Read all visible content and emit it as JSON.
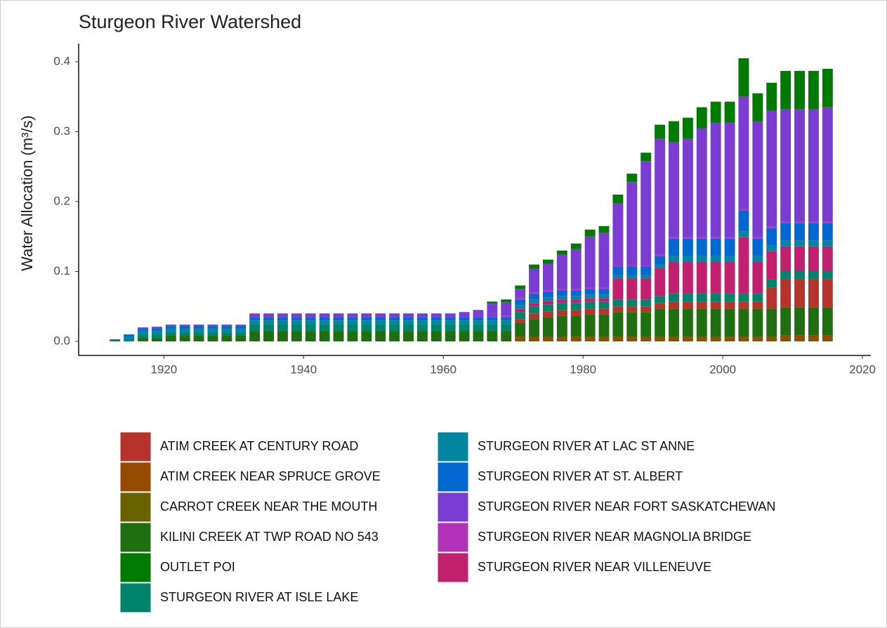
{
  "chart_data": {
    "type": "bar",
    "title": "Sturgeon River Watershed",
    "y_label": "Water Allocation (m³/s)",
    "x": [
      1913,
      1915,
      1917,
      1919,
      1921,
      1923,
      1925,
      1927,
      1929,
      1931,
      1933,
      1935,
      1937,
      1939,
      1941,
      1943,
      1945,
      1947,
      1949,
      1951,
      1953,
      1955,
      1957,
      1959,
      1961,
      1963,
      1965,
      1967,
      1969,
      1971,
      1973,
      1975,
      1977,
      1979,
      1981,
      1983,
      1985,
      1987,
      1989,
      1991,
      1993,
      1995,
      1997,
      1999,
      2001,
      2003,
      2005,
      2007,
      2009,
      2011,
      2013,
      2015
    ],
    "xlim": [
      1907.8,
      2021.2
    ],
    "xticks": [
      1920,
      1940,
      1960,
      1980,
      2000,
      2020
    ],
    "ylim": [
      -0.0201,
      0.4261
    ],
    "yticks": [
      {
        "value": 0,
        "label": "0.0"
      },
      0.1,
      0.2,
      0.3,
      0.4
    ],
    "series": [
      {
        "name": "ATIM CREEK AT CENTURY ROAD",
        "color": "#b5332a",
        "values": [
          0,
          0,
          0,
          0,
          0,
          0,
          0,
          0,
          0,
          0,
          0,
          0,
          0,
          0,
          0,
          0,
          0,
          0,
          0,
          0,
          0,
          0,
          0,
          0,
          0,
          0,
          0,
          0,
          0,
          0.005,
          0.008,
          0.008,
          0.008,
          0.008,
          0.008,
          0.008,
          0.008,
          0.008,
          0.008,
          0.008,
          0.01,
          0.01,
          0.01,
          0.01,
          0.01,
          0.01,
          0.01,
          0.03,
          0.04,
          0.04,
          0.04,
          0.04
        ]
      },
      {
        "name": "ATIM CREEK NEAR SPRUCE GROVE",
        "color": "#964b00",
        "values": [
          0,
          0,
          0,
          0,
          0,
          0,
          0,
          0,
          0,
          0,
          0,
          0,
          0,
          0,
          0,
          0,
          0,
          0,
          0,
          0,
          0,
          0,
          0,
          0,
          0,
          0,
          0,
          0,
          0,
          0.004,
          0.004,
          0.004,
          0.004,
          0.004,
          0.004,
          0.004,
          0.004,
          0.004,
          0.004,
          0.004,
          0.004,
          0.004,
          0.004,
          0.004,
          0.004,
          0.004,
          0.004,
          0.004,
          0.006,
          0.006,
          0.006,
          0.006
        ]
      },
      {
        "name": "CARROT CREEK NEAR THE MOUTH",
        "color": "#6b6100",
        "values": [
          0,
          0,
          0,
          0,
          0,
          0,
          0,
          0,
          0,
          0,
          0,
          0,
          0,
          0,
          0,
          0,
          0,
          0,
          0,
          0,
          0,
          0,
          0,
          0,
          0,
          0,
          0,
          0,
          0,
          0.003,
          0.003,
          0.003,
          0.003,
          0.003,
          0.003,
          0.003,
          0.003,
          0.003,
          0.003,
          0.003,
          0.003,
          0.003,
          0.003,
          0.003,
          0.003,
          0.003,
          0.003,
          0.003,
          0.003,
          0.003,
          0.003,
          0.003
        ]
      },
      {
        "name": "KILINI CREEK AT TWP ROAD NO 543",
        "color": "#1f6e0f",
        "values": [
          0,
          0,
          0.005,
          0.005,
          0.008,
          0.008,
          0.008,
          0.008,
          0.008,
          0.008,
          0.015,
          0.015,
          0.015,
          0.015,
          0.015,
          0.015,
          0.015,
          0.015,
          0.015,
          0.015,
          0.015,
          0.015,
          0.015,
          0.015,
          0.015,
          0.015,
          0.015,
          0.015,
          0.015,
          0.02,
          0.025,
          0.028,
          0.03,
          0.03,
          0.032,
          0.032,
          0.035,
          0.035,
          0.035,
          0.04,
          0.04,
          0.04,
          0.04,
          0.04,
          0.04,
          0.04,
          0.04,
          0.04,
          0.04,
          0.04,
          0.04,
          0.04
        ]
      },
      {
        "name": "OUTLET POI",
        "color": "#007a00",
        "values": [
          0,
          0,
          0,
          0,
          0,
          0,
          0,
          0,
          0,
          0,
          0,
          0,
          0,
          0,
          0,
          0,
          0,
          0,
          0,
          0,
          0,
          0,
          0,
          0,
          0,
          0,
          0,
          0.003,
          0.004,
          0.005,
          0.006,
          0.006,
          0.006,
          0.008,
          0.01,
          0.01,
          0.012,
          0.012,
          0.012,
          0.02,
          0.03,
          0.03,
          0.03,
          0.03,
          0.03,
          0.055,
          0.04,
          0.04,
          0.055,
          0.055,
          0.055,
          0.055
        ]
      },
      {
        "name": "STURGEON RIVER AT ISLE LAKE",
        "color": "#00826b",
        "values": [
          0.003,
          0.003,
          0.005,
          0.005,
          0.005,
          0.005,
          0.005,
          0.005,
          0.005,
          0.005,
          0.01,
          0.01,
          0.01,
          0.01,
          0.01,
          0.01,
          0.01,
          0.01,
          0.01,
          0.01,
          0.01,
          0.01,
          0.01,
          0.01,
          0.01,
          0.01,
          0.01,
          0.01,
          0.01,
          0.01,
          0.01,
          0.01,
          0.01,
          0.01,
          0.01,
          0.01,
          0.01,
          0.01,
          0.01,
          0.01,
          0.012,
          0.012,
          0.012,
          0.012,
          0.012,
          0.012,
          0.012,
          0.012,
          0.012,
          0.012,
          0.012,
          0.012
        ]
      },
      {
        "name": "STURGEON RIVER AT LAC ST ANNE",
        "color": "#0086a0",
        "values": [
          0,
          0.004,
          0.005,
          0.005,
          0.005,
          0.005,
          0.005,
          0.005,
          0.005,
          0.005,
          0.005,
          0.005,
          0.005,
          0.005,
          0.005,
          0.005,
          0.005,
          0.005,
          0.005,
          0.005,
          0.005,
          0.005,
          0.005,
          0.005,
          0.005,
          0.005,
          0.005,
          0.005,
          0.005,
          0.005,
          0.005,
          0.005,
          0.005,
          0.005,
          0.005,
          0.005,
          0.005,
          0.005,
          0.005,
          0.005,
          0.008,
          0.008,
          0.008,
          0.008,
          0.008,
          0.008,
          0.008,
          0.008,
          0.008,
          0.008,
          0.008,
          0.008
        ]
      },
      {
        "name": "STURGEON RIVER AT ST. ALBERT",
        "color": "#0068cf",
        "values": [
          0,
          0.003,
          0.003,
          0.004,
          0.004,
          0.004,
          0.004,
          0.004,
          0.004,
          0.004,
          0.005,
          0.005,
          0.005,
          0.005,
          0.005,
          0.005,
          0.005,
          0.005,
          0.005,
          0.005,
          0.005,
          0.005,
          0.005,
          0.005,
          0.005,
          0.005,
          0.005,
          0.005,
          0.005,
          0.008,
          0.008,
          0.008,
          0.008,
          0.008,
          0.008,
          0.008,
          0.012,
          0.012,
          0.012,
          0.012,
          0.025,
          0.025,
          0.025,
          0.025,
          0.025,
          0.03,
          0.025,
          0.025,
          0.025,
          0.025,
          0.025,
          0.025
        ]
      },
      {
        "name": "STURGEON RIVER NEAR FORT SASKATCHEWAN",
        "color": "#7b3dd1",
        "values": [
          0,
          0,
          0.002,
          0.002,
          0.002,
          0.002,
          0.002,
          0.002,
          0.002,
          0.002,
          0.005,
          0.005,
          0.005,
          0.005,
          0.005,
          0.005,
          0.005,
          0.005,
          0.005,
          0.005,
          0.005,
          0.005,
          0.005,
          0.005,
          0.005,
          0.007,
          0.01,
          0.019,
          0.019,
          0.013,
          0.034,
          0.038,
          0.049,
          0.057,
          0.073,
          0.078,
          0.089,
          0.119,
          0.149,
          0.166,
          0.136,
          0.141,
          0.156,
          0.164,
          0.164,
          0.161,
          0.166,
          0.166,
          0.161,
          0.161,
          0.161,
          0.164
        ]
      },
      {
        "name": "STURGEON RIVER NEAR MAGNOLIA BRIDGE",
        "color": "#b132b9",
        "values": [
          0,
          0,
          0,
          0,
          0,
          0,
          0,
          0,
          0,
          0,
          0,
          0,
          0,
          0,
          0,
          0,
          0,
          0,
          0,
          0,
          0,
          0,
          0,
          0,
          0,
          0,
          0,
          0,
          0.002,
          0.002,
          0.002,
          0.002,
          0.002,
          0.002,
          0.002,
          0.002,
          0.002,
          0.002,
          0.002,
          0.002,
          0.002,
          0.002,
          0.002,
          0.002,
          0.002,
          0.002,
          0.002,
          0.002,
          0.002,
          0.002,
          0.002,
          0.002
        ]
      },
      {
        "name": "STURGEON RIVER NEAR VILLENEUVE",
        "color": "#c0206d",
        "values": [
          0,
          0,
          0,
          0,
          0,
          0,
          0,
          0,
          0,
          0,
          0,
          0,
          0,
          0,
          0,
          0,
          0,
          0,
          0,
          0,
          0,
          0,
          0,
          0,
          0,
          0,
          0,
          0,
          0,
          0.005,
          0.005,
          0.005,
          0.005,
          0.005,
          0.005,
          0.005,
          0.03,
          0.03,
          0.03,
          0.04,
          0.045,
          0.045,
          0.045,
          0.045,
          0.045,
          0.08,
          0.045,
          0.04,
          0.035,
          0.035,
          0.035,
          0.035
        ]
      }
    ]
  }
}
